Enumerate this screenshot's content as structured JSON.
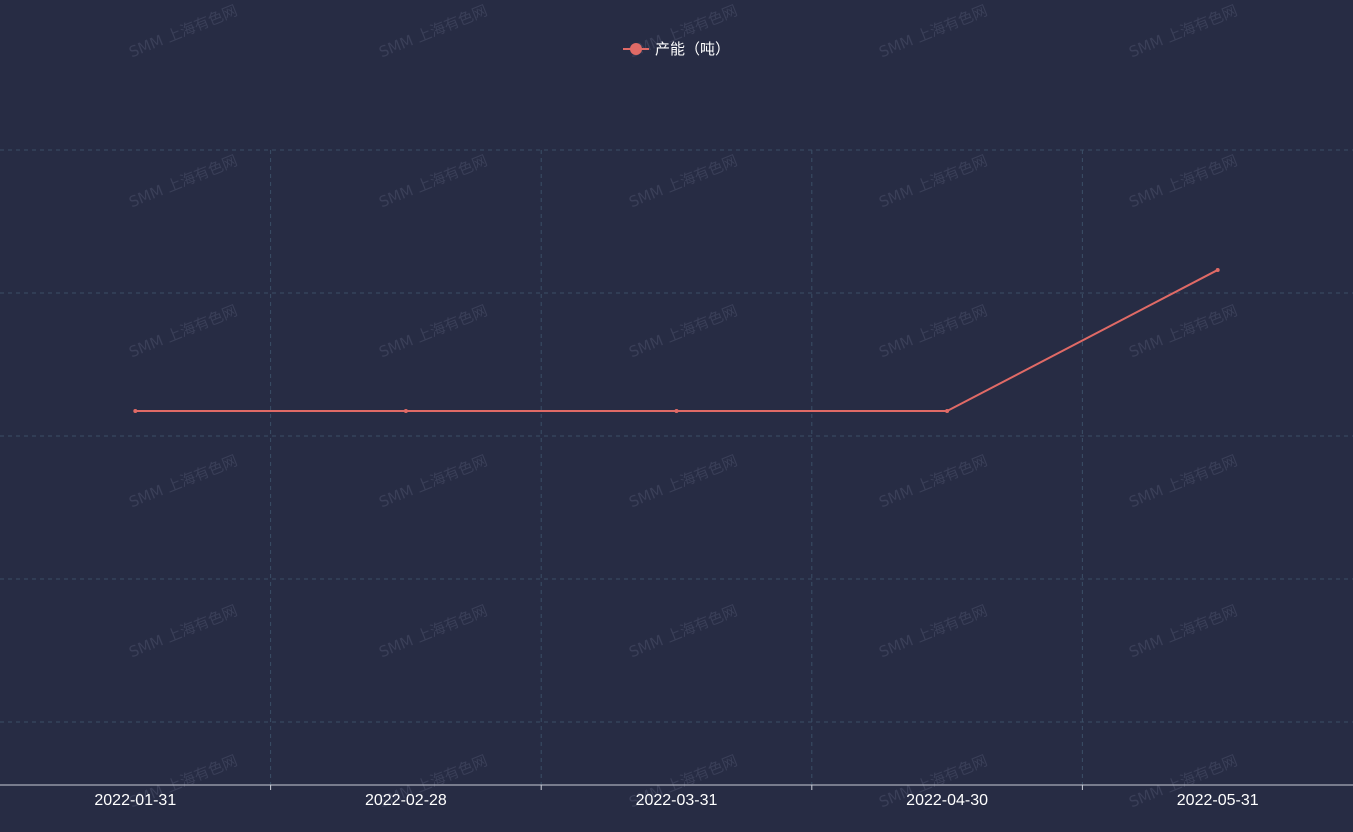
{
  "colors": {
    "background": "#272c44",
    "series": "#e06a66",
    "grid": "#3b4e66",
    "axis": "#c9ccd6",
    "watermark": "#3a3f58"
  },
  "watermark": "SMM 上海有色网",
  "legend": {
    "label": "产能（吨）"
  },
  "chart_data": {
    "type": "line",
    "categories": [
      "2022-01-31",
      "2022-02-28",
      "2022-03-31",
      "2022-04-30",
      "2022-05-31"
    ],
    "series": [
      {
        "name": "产能（吨）",
        "values": [
          5.3,
          5.3,
          5.3,
          5.3,
          7.3
        ]
      }
    ],
    "ylim": [
      0,
      9
    ],
    "title": "",
    "xlabel": "",
    "ylabel": "",
    "grid": true,
    "legend_position": "top-center"
  }
}
